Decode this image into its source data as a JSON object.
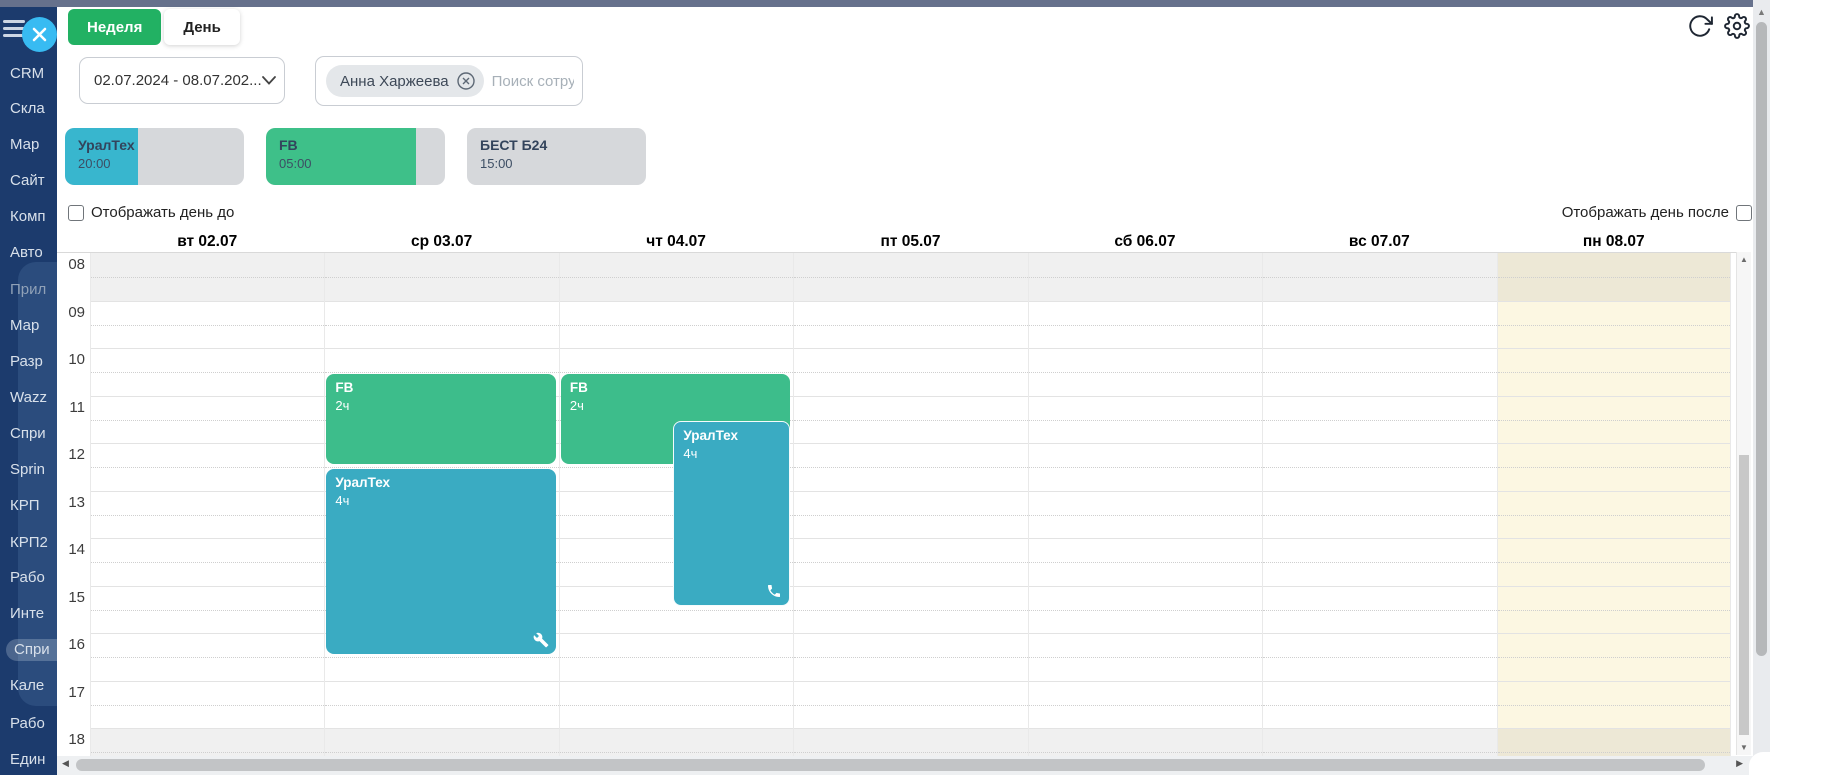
{
  "window": {
    "top_strip_color": "#66718c"
  },
  "sidebar": {
    "items": [
      {
        "label": "CRM"
      },
      {
        "label": "Скла"
      },
      {
        "label": "Мар"
      },
      {
        "label": "Сайт"
      },
      {
        "label": "Комп"
      },
      {
        "label": "Авто"
      },
      {
        "label": "Прил",
        "muted": true
      },
      {
        "label": "Мар"
      },
      {
        "label": "Разр"
      },
      {
        "label": "Wazz"
      },
      {
        "label": "Спри"
      },
      {
        "label": "Sprin"
      },
      {
        "label": "КРП"
      },
      {
        "label": "КРП2"
      },
      {
        "label": "Рабо"
      },
      {
        "label": "Инте"
      },
      {
        "label": "Спри",
        "selected": true
      },
      {
        "label": "Кале"
      },
      {
        "label": "Рабо"
      },
      {
        "label": "Един"
      }
    ],
    "icons": [
      "menu-icon",
      "close-icon"
    ]
  },
  "tabs": [
    {
      "label": "Неделя",
      "active": true
    },
    {
      "label": "День",
      "active": false
    }
  ],
  "toolbar": {
    "icons": [
      "refresh-icon",
      "settings-icon"
    ]
  },
  "filters": {
    "date_range": "02.07.2024 - 08.07.202...",
    "employee_tag": "Анна Харжеева",
    "search_placeholder": "Поиск сотрудника"
  },
  "legend": [
    {
      "name": "УралТех",
      "time": "20:00",
      "fill_color": "#38b6ce",
      "fill_pct": 41
    },
    {
      "name": "FB",
      "time": "05:00",
      "fill_color": "#3ec089",
      "fill_pct": 84
    },
    {
      "name": "БЕСТ Б24",
      "time": "15:00",
      "fill_color": "#d6d8db",
      "fill_pct": 0
    }
  ],
  "options": {
    "show_day_before": "Отображать день до",
    "show_day_after": "Отображать день после",
    "before_checked": false,
    "after_checked": false
  },
  "calendar": {
    "days": [
      {
        "label": "вт 02.07"
      },
      {
        "label": "ср 03.07"
      },
      {
        "label": "чт 04.07"
      },
      {
        "label": "пт 05.07"
      },
      {
        "label": "сб 06.07"
      },
      {
        "label": "вс 07.07"
      },
      {
        "label": "пн 08.07",
        "highlighted": true
      }
    ],
    "day_highlight_color": "#fcf7e2",
    "hours": [
      "08",
      "09",
      "10",
      "11",
      "12",
      "13",
      "14",
      "15",
      "16",
      "17",
      "18"
    ],
    "shaded_hours": [
      "08",
      "18"
    ],
    "events": [
      {
        "day": 1,
        "title": "FB",
        "duration": "2ч",
        "start": "10:30",
        "end": "12:30",
        "color": "#3dbd8b",
        "icon": null,
        "left_pct": 0,
        "width_pct": 100
      },
      {
        "day": 1,
        "title": "УралТех",
        "duration": "4ч",
        "start": "12:30",
        "end": "16:30",
        "color": "#3aabc2",
        "icon": "wrench",
        "left_pct": 0,
        "width_pct": 100
      },
      {
        "day": 2,
        "title": "FB",
        "duration": "2ч",
        "start": "10:30",
        "end": "12:30",
        "color": "#3dbd8b",
        "icon": null,
        "left_pct": 0,
        "width_pct": 100
      },
      {
        "day": 2,
        "title": "УралТех",
        "duration": "4ч",
        "start": "11:30",
        "end": "15:30",
        "color": "#3aabc2",
        "icon": "phone",
        "left_pct": 48,
        "width_pct": 52,
        "outlined": true
      }
    ]
  }
}
